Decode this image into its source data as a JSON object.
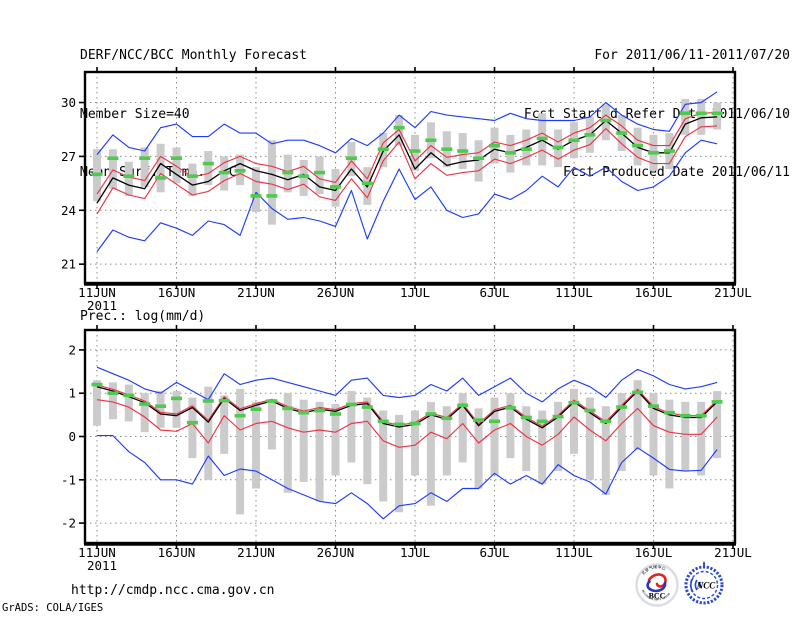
{
  "header": {
    "title": "DERF/NCC/BCC Monthly Forecast",
    "member_size": "Member Size=40",
    "period": "For 2011/06/11-2011/07/20",
    "refer_date": "Fcst Started Refer Date 2011/06/10",
    "produced_date": "Fcst Produced Date 2011/06/11"
  },
  "footer": {
    "url": "http://cmdp.ncc.cma.gov.cn",
    "credit": "GrADS: COLA/IGES"
  },
  "logos": {
    "bcc": {
      "label": "BCC",
      "top_text": "北京气候中心",
      "bottom_text": "BEIJING CLIMATE CENTER"
    },
    "ncc": {
      "label": "NCC"
    }
  },
  "colors": {
    "envelope": "#1e3cff",
    "quartile": "#ee3448",
    "mean": "#000000",
    "obs_dash": "#4ecb4e",
    "spread_bar": "#cbcbcb",
    "grid": "#8c8c8c"
  },
  "chart_data": [
    {
      "type": "line",
      "title": "Mean Surf. Temp.: °C",
      "ylabel": "",
      "ylim": [
        19.95,
        31.7
      ],
      "y_ticks": [
        30,
        27,
        24,
        21
      ],
      "grid": "dotted",
      "n_points": 40,
      "x_tick_labels": [
        "11JUN",
        "16JUN",
        "21JUN",
        "26JUN",
        "1JUL",
        "6JUL",
        "11JUL",
        "16JUL",
        "21JUL"
      ],
      "year_label": "2011",
      "series": [
        {
          "name": "ensemble-max",
          "color_key": "envelope",
          "values": [
            27.1,
            28.2,
            27.5,
            27.3,
            28.6,
            28.8,
            28.1,
            28.1,
            28.8,
            28.3,
            28.3,
            27.7,
            27.9,
            27.9,
            27.6,
            27.2,
            28.0,
            27.6,
            28.3,
            29.3,
            28.6,
            29.5,
            29.3,
            29.2,
            29.1,
            29.0,
            29.4,
            29.1,
            29.0,
            29.0,
            29.0,
            29.2,
            30.0,
            29.3,
            28.8,
            28.5,
            28.4,
            29.9,
            30.0,
            30.6
          ]
        },
        {
          "name": "ensemble-min",
          "color_key": "envelope",
          "values": [
            21.7,
            22.9,
            22.5,
            22.3,
            23.3,
            23.0,
            22.6,
            23.4,
            23.2,
            22.6,
            25.0,
            24.1,
            23.5,
            23.6,
            23.4,
            23.1,
            25.1,
            22.4,
            24.5,
            26.3,
            24.6,
            25.3,
            24.0,
            23.6,
            23.8,
            24.9,
            24.6,
            25.1,
            25.9,
            25.3,
            26.4,
            25.9,
            26.4,
            25.6,
            25.1,
            25.3,
            25.9,
            27.2,
            27.9,
            27.7
          ]
        },
        {
          "name": "upper-spread",
          "color_key": "quartile",
          "values": [
            24.9,
            26.25,
            25.85,
            25.65,
            27.0,
            26.45,
            25.85,
            26.05,
            26.65,
            27.0,
            26.6,
            26.45,
            26.15,
            26.45,
            25.75,
            25.55,
            26.75,
            25.75,
            27.75,
            28.5,
            26.75,
            27.6,
            26.95,
            27.1,
            27.2,
            27.8,
            27.6,
            27.9,
            28.3,
            27.8,
            28.3,
            28.6,
            29.3,
            28.7,
            27.9,
            27.6,
            27.6,
            29.1,
            29.4,
            29.45
          ]
        },
        {
          "name": "lower-spread",
          "color_key": "quartile",
          "values": [
            23.8,
            25.25,
            24.85,
            24.65,
            26.05,
            25.45,
            24.85,
            25.05,
            25.65,
            26.05,
            25.6,
            25.45,
            25.15,
            25.45,
            24.75,
            24.55,
            25.75,
            24.7,
            26.75,
            27.8,
            25.75,
            26.6,
            25.95,
            26.1,
            26.2,
            26.85,
            26.6,
            26.95,
            27.35,
            26.85,
            27.35,
            27.65,
            28.55,
            27.7,
            26.95,
            26.6,
            26.6,
            28.1,
            28.65,
            28.7
          ]
        },
        {
          "name": "ensemble-mean",
          "color_key": "mean",
          "values": [
            24.4,
            25.8,
            25.4,
            25.2,
            26.6,
            26.0,
            25.4,
            25.6,
            26.2,
            26.6,
            26.2,
            26.0,
            25.7,
            26.0,
            25.3,
            25.1,
            26.3,
            25.3,
            27.3,
            28.2,
            26.3,
            27.2,
            26.5,
            26.7,
            26.8,
            27.4,
            27.2,
            27.5,
            27.9,
            27.4,
            27.9,
            28.2,
            29.0,
            28.3,
            27.5,
            27.2,
            27.2,
            28.8,
            29.15,
            29.2
          ]
        }
      ],
      "markers": {
        "name": "climatology-dash",
        "color_key": "obs_dash",
        "values": [
          26.0,
          26.9,
          25.9,
          26.9,
          25.8,
          26.9,
          25.9,
          26.6,
          26.1,
          26.2,
          24.8,
          24.8,
          26.1,
          25.9,
          26.1,
          25.3,
          26.9,
          25.5,
          27.4,
          28.6,
          27.3,
          27.9,
          27.4,
          27.3,
          26.9,
          27.6,
          27.2,
          27.4,
          28.0,
          27.5,
          27.9,
          28.2,
          29.0,
          28.3,
          27.6,
          27.2,
          27.3,
          29.4,
          29.4,
          29.4
        ]
      },
      "bars": {
        "name": "member-spread-bar",
        "color_key": "spread_bar",
        "low": [
          24.5,
          25.2,
          24.8,
          25.3,
          25.0,
          25.5,
          24.8,
          25.4,
          25.1,
          25.4,
          23.9,
          23.2,
          25.0,
          24.8,
          24.9,
          24.2,
          25.9,
          24.3,
          26.4,
          27.6,
          26.2,
          26.9,
          26.4,
          26.3,
          25.6,
          26.6,
          26.1,
          26.5,
          26.5,
          26.4,
          26.9,
          27.2,
          27.9,
          27.3,
          26.5,
          26.2,
          26.3,
          28.2,
          28.2,
          28.5
        ],
        "high": [
          27.4,
          27.4,
          26.7,
          27.5,
          27.7,
          27.5,
          26.6,
          27.3,
          27.0,
          27.1,
          26.4,
          27.9,
          27.1,
          26.8,
          27.0,
          26.3,
          27.8,
          26.4,
          28.3,
          29.3,
          28.2,
          28.9,
          28.4,
          28.3,
          27.9,
          28.6,
          28.2,
          28.5,
          29.4,
          28.5,
          28.9,
          29.2,
          29.9,
          29.3,
          28.6,
          28.2,
          28.3,
          30.2,
          30.2,
          30.0
        ]
      }
    },
    {
      "type": "line",
      "title": "Prec.: log(mm/d)",
      "ylabel": "",
      "ylim": [
        -2.46,
        2.46
      ],
      "y_ticks": [
        2,
        1,
        0,
        -1,
        -2
      ],
      "grid": "dotted",
      "n_points": 40,
      "x_tick_labels": [
        "11JUN",
        "16JUN",
        "21JUN",
        "26JUN",
        "1JUL",
        "6JUL",
        "11JUL",
        "16JUL",
        "21JUL"
      ],
      "year_label": "2011",
      "series": [
        {
          "name": "ensemble-max",
          "color_key": "envelope",
          "values": [
            1.6,
            1.45,
            1.3,
            1.1,
            1.0,
            1.25,
            1.05,
            0.85,
            1.45,
            1.2,
            1.3,
            1.35,
            1.25,
            1.15,
            1.05,
            0.95,
            1.3,
            1.35,
            0.95,
            0.9,
            0.95,
            1.2,
            1.05,
            1.35,
            0.95,
            1.15,
            1.35,
            1.0,
            0.8,
            1.1,
            1.3,
            1.15,
            0.9,
            1.3,
            1.55,
            1.4,
            1.2,
            1.1,
            1.15,
            1.25
          ]
        },
        {
          "name": "ensemble-min",
          "color_key": "envelope",
          "values": [
            0.02,
            0.02,
            -0.35,
            -0.6,
            -1.0,
            -1.0,
            -1.1,
            -0.45,
            -0.9,
            -0.75,
            -0.8,
            -1.0,
            -1.2,
            -1.35,
            -1.5,
            -1.55,
            -1.3,
            -1.55,
            -1.9,
            -1.6,
            -1.55,
            -1.3,
            -1.5,
            -1.2,
            -1.2,
            -0.85,
            -1.1,
            -0.9,
            -1.1,
            -0.65,
            -0.9,
            -1.05,
            -1.33,
            -0.6,
            -0.26,
            -0.5,
            -0.76,
            -0.8,
            -0.78,
            -0.3
          ]
        },
        {
          "name": "upper-spread",
          "color_key": "quartile",
          "values": [
            1.19,
            1.09,
            0.96,
            0.82,
            0.56,
            0.52,
            0.71,
            0.37,
            0.92,
            0.64,
            0.76,
            0.86,
            0.69,
            0.59,
            0.67,
            0.62,
            0.76,
            0.8,
            0.34,
            0.26,
            0.32,
            0.54,
            0.44,
            0.76,
            0.29,
            0.62,
            0.72,
            0.44,
            0.24,
            0.49,
            0.84,
            0.59,
            0.34,
            0.72,
            1.09,
            0.69,
            0.54,
            0.48,
            0.48,
            0.84
          ]
        },
        {
          "name": "lower-spread",
          "color_key": "quartile",
          "values": [
            0.85,
            0.8,
            0.68,
            0.45,
            0.15,
            0.12,
            0.3,
            -0.15,
            0.48,
            0.15,
            0.3,
            0.35,
            0.2,
            0.1,
            0.15,
            0.1,
            0.3,
            0.35,
            -0.1,
            -0.25,
            -0.2,
            0.1,
            -0.05,
            0.3,
            -0.15,
            0.15,
            0.3,
            0.0,
            -0.2,
            0.05,
            0.45,
            0.15,
            -0.1,
            0.3,
            0.65,
            0.25,
            0.1,
            0.05,
            0.05,
            0.45
          ]
        },
        {
          "name": "ensemble-mean",
          "color_key": "mean",
          "values": [
            1.15,
            1.05,
            0.92,
            0.78,
            0.52,
            0.48,
            0.67,
            0.33,
            0.88,
            0.6,
            0.72,
            0.82,
            0.65,
            0.55,
            0.63,
            0.58,
            0.72,
            0.76,
            0.3,
            0.22,
            0.28,
            0.5,
            0.4,
            0.72,
            0.25,
            0.58,
            0.68,
            0.4,
            0.2,
            0.45,
            0.8,
            0.55,
            0.3,
            0.68,
            1.05,
            0.65,
            0.5,
            0.44,
            0.44,
            0.8
          ]
        }
      ],
      "markers": {
        "name": "climatology-dash",
        "color_key": "obs_dash",
        "values": [
          1.2,
          1.0,
          0.95,
          0.75,
          0.7,
          0.88,
          0.32,
          0.82,
          0.83,
          0.48,
          0.63,
          0.82,
          0.65,
          0.55,
          0.6,
          0.52,
          0.74,
          0.68,
          0.35,
          0.28,
          0.3,
          0.52,
          0.42,
          0.72,
          0.38,
          0.35,
          0.66,
          0.44,
          0.35,
          0.46,
          0.78,
          0.6,
          0.35,
          0.68,
          1.02,
          0.7,
          0.55,
          0.48,
          0.48,
          0.8
        ]
      },
      "bars": {
        "name": "member-spread-bar",
        "color_key": "spread_bar",
        "low": [
          0.25,
          0.4,
          0.35,
          0.1,
          0.2,
          0.2,
          -0.5,
          -1.0,
          -0.4,
          -1.8,
          -1.2,
          -0.3,
          -1.3,
          -1.05,
          -1.5,
          -0.9,
          -0.6,
          -1.1,
          -1.5,
          -1.75,
          -0.9,
          -1.6,
          -0.9,
          -0.6,
          -1.2,
          -0.9,
          -0.5,
          -0.8,
          -1.1,
          -0.8,
          -0.4,
          -1.0,
          -1.35,
          -0.8,
          -0.3,
          -0.9,
          -1.2,
          -0.8,
          -0.9,
          -0.5
        ],
        "high": [
          1.3,
          1.25,
          1.2,
          1.0,
          1.05,
          1.05,
          0.9,
          1.15,
          0.95,
          1.1,
          0.8,
          0.85,
          1.0,
          0.85,
          0.8,
          0.75,
          1.05,
          0.9,
          0.6,
          0.5,
          0.6,
          0.8,
          0.7,
          1.0,
          0.65,
          0.9,
          1.0,
          0.7,
          0.6,
          0.8,
          1.1,
          0.9,
          0.7,
          1.0,
          1.3,
          1.0,
          0.85,
          0.8,
          0.8,
          1.05
        ]
      }
    }
  ]
}
